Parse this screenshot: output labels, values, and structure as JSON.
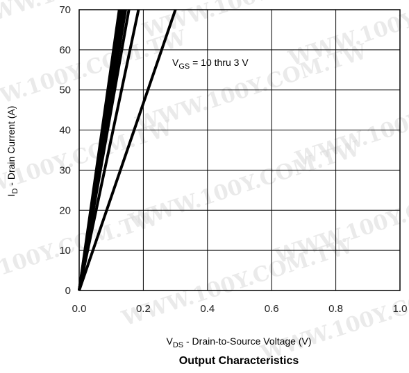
{
  "watermark": "WWW.100Y.COM.TW",
  "chart_data": {
    "type": "line",
    "title": "Output Characteristics",
    "xlabel": {
      "main": "V",
      "sub": "DS",
      "rest": " - Drain-to-Source Voltage (V)"
    },
    "ylabel": {
      "main": "I",
      "sub": "D",
      "rest": " - Drain Current (A)"
    },
    "xlim": [
      0.0,
      1.0
    ],
    "ylim": [
      0,
      70
    ],
    "x_ticks": [
      "0.0",
      "0.2",
      "0.4",
      "0.6",
      "0.8",
      "1.0"
    ],
    "x_tick_values": [
      0.0,
      0.2,
      0.4,
      0.6,
      0.8,
      1.0
    ],
    "y_ticks": [
      "0",
      "10",
      "20",
      "30",
      "40",
      "50",
      "60",
      "70"
    ],
    "y_tick_values": [
      0,
      10,
      20,
      30,
      40,
      50,
      60,
      70
    ],
    "grid": true,
    "annotation": {
      "main": "V",
      "sub": "GS",
      "rest": " = 10 thru 3 V"
    },
    "annotation_at": {
      "x": 0.29,
      "y": 56
    },
    "series": [
      {
        "values": [
          [
            0,
            0
          ],
          [
            0.125,
            70
          ]
        ]
      },
      {
        "values": [
          [
            0,
            0
          ],
          [
            0.13,
            70
          ]
        ]
      },
      {
        "values": [
          [
            0,
            0
          ],
          [
            0.135,
            70
          ]
        ]
      },
      {
        "values": [
          [
            0,
            0
          ],
          [
            0.14,
            70
          ]
        ]
      },
      {
        "values": [
          [
            0,
            0
          ],
          [
            0.145,
            70
          ]
        ]
      },
      {
        "values": [
          [
            0,
            0
          ],
          [
            0.155,
            70
          ]
        ]
      },
      {
        "values": [
          [
            0,
            0
          ],
          [
            0.185,
            70
          ]
        ]
      },
      {
        "values": [
          [
            0,
            0
          ],
          [
            0.3,
            70
          ]
        ]
      }
    ],
    "line_color": "#000000"
  }
}
